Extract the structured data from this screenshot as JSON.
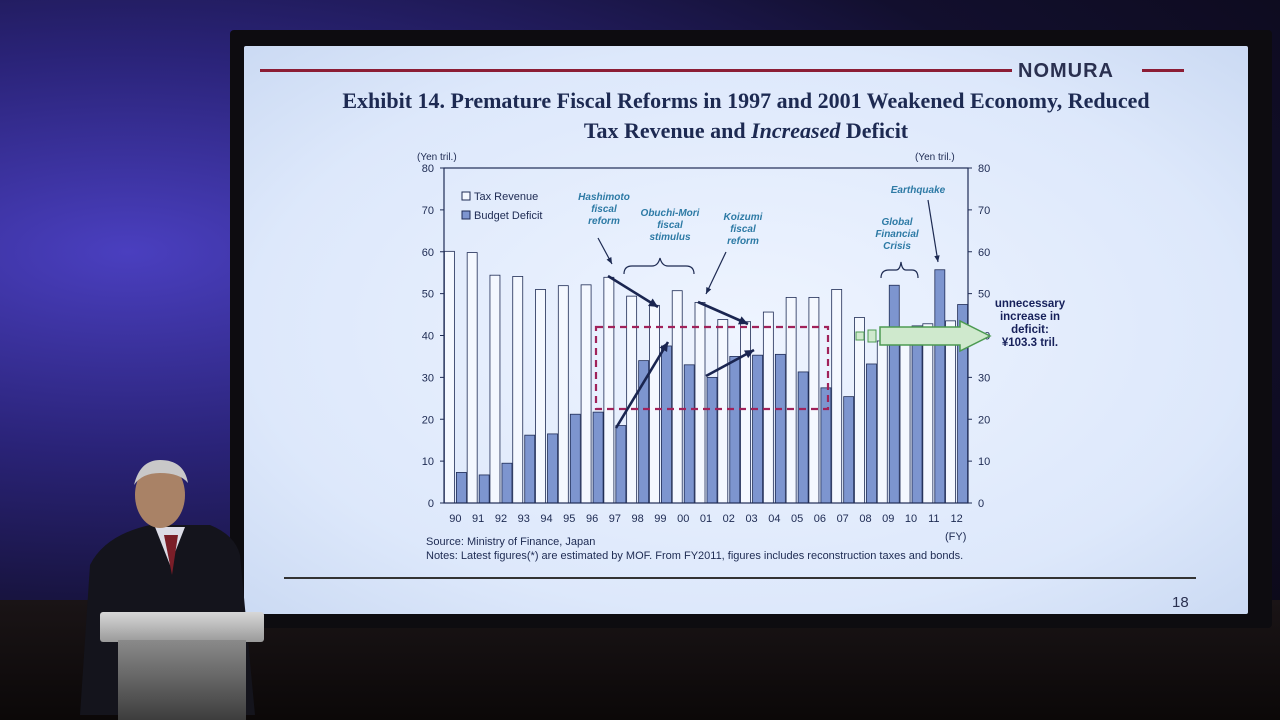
{
  "slide": {
    "logo": "NOMURA",
    "title_line1": "Exhibit 14.  Premature Fiscal Reforms in 1997 and 2001 Weakened Economy, Reduced",
    "title_line2_a": "Tax Revenue and ",
    "title_line2_b": "Increased",
    "title_line2_c": " Deficit",
    "source": "Source: Ministry of Finance, Japan",
    "notes": "Notes: Latest figures(*) are estimated by MOF. From FY2011, figures includes reconstruction taxes and bonds.",
    "page_number": "18"
  },
  "chart_data": {
    "type": "bar",
    "categories": [
      "90",
      "91",
      "92",
      "93",
      "94",
      "95",
      "96",
      "97",
      "98",
      "99",
      "00",
      "01",
      "02",
      "03",
      "04",
      "05",
      "06",
      "07",
      "08",
      "09",
      "10",
      "11",
      "12"
    ],
    "xlabel": "(FY)",
    "ylabel_left": "(Yen tril.)",
    "ylabel_right": "(Yen tril.)",
    "ylim": [
      0,
      80
    ],
    "yticks": [
      "0",
      "10",
      "20",
      "30",
      "40",
      "50",
      "60",
      "70",
      "80"
    ],
    "series": [
      {
        "name": "Tax Revenue",
        "values": [
          60.1,
          59.8,
          54.4,
          54.1,
          51.0,
          51.9,
          52.1,
          53.9,
          49.4,
          47.2,
          50.7,
          47.9,
          43.8,
          43.3,
          45.6,
          49.1,
          49.1,
          51.0,
          44.3,
          38.7,
          41.5,
          42.8,
          43.5
        ]
      },
      {
        "name": "Budget Deficit",
        "values": [
          7.3,
          6.7,
          9.5,
          16.2,
          16.5,
          21.2,
          21.7,
          18.5,
          34.0,
          37.5,
          33.0,
          30.0,
          35.0,
          35.3,
          35.5,
          31.3,
          27.5,
          25.4,
          33.2,
          52.0,
          42.3,
          55.7,
          47.4
        ]
      }
    ],
    "colors": {
      "tax": "#f4f8ff",
      "deficit": "#7d95cf",
      "outline": "#1f2c55",
      "dashed_box": "#a0225a",
      "arrow": "#4d9a52"
    },
    "annotations": {
      "hashimoto": [
        "Hashimoto",
        "fiscal",
        "reform"
      ],
      "obuchi": [
        "Obuchi-Mori",
        "fiscal",
        "stimulus"
      ],
      "koizumi": [
        "Koizumi",
        "fiscal",
        "reform"
      ],
      "gfc": [
        "Global",
        "Financial",
        "Crisis"
      ],
      "earthquake": [
        "Earthquake"
      ],
      "callout": [
        "unnecessary",
        "increase in",
        "deficit:",
        "¥103.3 tril."
      ]
    }
  }
}
